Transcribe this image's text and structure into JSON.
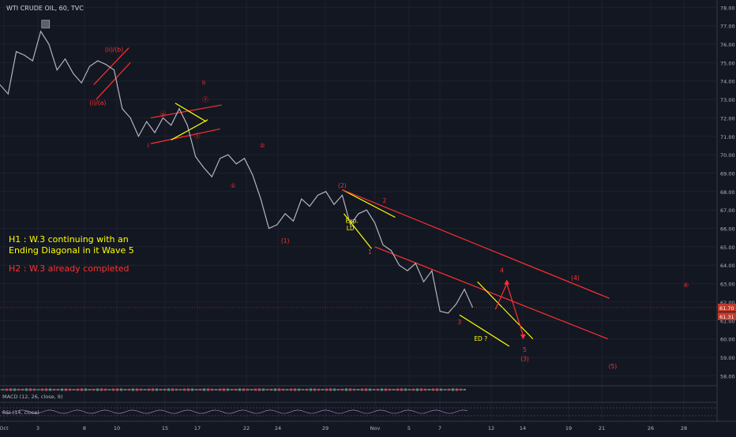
{
  "header": {
    "symbol": "WTI CRUDE OIL, 60, TVC"
  },
  "chart_data": {
    "type": "line",
    "title": "WTI CRUDE OIL, 60, TVC",
    "xlabel": "",
    "ylabel": "",
    "x_tick_labels": [
      "Oct",
      "3",
      "8",
      "10",
      "15",
      "17",
      "22",
      "24",
      "29",
      "Nov",
      "5",
      "7",
      "12",
      "14",
      "19",
      "21",
      "26",
      "28"
    ],
    "ylim": [
      57.5,
      78.4
    ],
    "y_ticks": [
      78.0,
      77.0,
      76.0,
      75.0,
      74.0,
      73.0,
      72.0,
      71.0,
      70.0,
      69.0,
      68.0,
      67.0,
      66.0,
      65.0,
      64.0,
      63.0,
      62.0,
      61.0,
      60.0,
      59.0,
      58.0
    ],
    "y_tick_labels": [
      "78.00",
      "77.00",
      "76.00",
      "75.00",
      "74.00",
      "73.00",
      "72.00",
      "71.00",
      "70.00",
      "69.00",
      "68.00",
      "67.00",
      "66.00",
      "65.00",
      "64.00",
      "63.00",
      "62.00",
      "61.00",
      "60.00",
      "59.00",
      "58.00"
    ],
    "x_domain": [
      0,
      88
    ],
    "series": [
      {
        "x": [
          0,
          1,
          2,
          3,
          4,
          5,
          6,
          7,
          8,
          9,
          10,
          11,
          12,
          13,
          14,
          15,
          16,
          17,
          18,
          19,
          20,
          21,
          22,
          23,
          24,
          25,
          26,
          27,
          28,
          29,
          30,
          31,
          32,
          33,
          34,
          35,
          36,
          37,
          38,
          39,
          40,
          41,
          42,
          43,
          44,
          45,
          46,
          47,
          48,
          49,
          50,
          51,
          52,
          53,
          54,
          55,
          56,
          57,
          58
        ],
        "y": [
          73.8,
          73.3,
          75.6,
          75.4,
          75.1,
          76.7,
          76.0,
          74.6,
          75.2,
          74.4,
          73.9,
          74.8,
          75.1,
          74.9,
          74.6,
          72.5,
          72.0,
          71.0,
          71.8,
          71.2,
          72.0,
          71.6,
          72.5,
          71.6,
          69.9,
          69.3,
          68.8,
          69.8,
          70.0,
          69.5,
          69.8,
          68.9,
          67.6,
          66.0,
          66.2,
          66.8,
          66.4,
          67.6,
          67.2,
          67.8,
          68.0,
          67.3,
          67.8,
          66.2,
          66.8,
          67.0,
          66.3,
          65.1,
          64.8,
          64.0,
          63.7,
          64.1,
          63.1,
          63.7,
          61.5,
          61.4,
          61.9,
          62.7,
          61.7
        ],
        "color": "#b2b5be"
      }
    ],
    "last_price_label": "61.70",
    "secondary_price_label": "61.31",
    "text_notes": [
      {
        "text": "H1 : W.3 continuing with an",
        "color": "#ffff00"
      },
      {
        "text": "Ending Diagonal in it Wave 5",
        "color": "#ffff00"
      },
      {
        "text": "H2 : W.3 already completed",
        "color": "#ff3030"
      }
    ],
    "wave_labels": [
      {
        "text": "(ii)/(b)",
        "x": 14,
        "y": 75.6,
        "color": "#ff3030"
      },
      {
        "text": "(i)/(a)",
        "x": 12,
        "y": 72.7,
        "color": "#ff3030"
      },
      {
        "text": "ii",
        "x": 25,
        "y": 73.8,
        "color": "#ff3030"
      },
      {
        "text": "i",
        "x": 18.2,
        "y": 70.4,
        "color": "#ff3030"
      },
      {
        "text": "ⓦ",
        "x": 20,
        "y": 72.1,
        "color": "#ff3030"
      },
      {
        "text": "ⓧ",
        "x": 24.2,
        "y": 70.9,
        "color": "#ff3030"
      },
      {
        "text": "ⓨ",
        "x": 25.2,
        "y": 72.9,
        "color": "#ff3030"
      },
      {
        "text": "①",
        "x": 28.6,
        "y": 68.2,
        "color": "#ff3030"
      },
      {
        "text": "②",
        "x": 32.2,
        "y": 70.4,
        "color": "#ff3030"
      },
      {
        "text": "(1)",
        "x": 35,
        "y": 65.2,
        "color": "#ff3030"
      },
      {
        "text": "(2)",
        "x": 42,
        "y": 68.2,
        "color": "#ff3030"
      },
      {
        "text": "2",
        "x": 47.2,
        "y": 67.4,
        "color": "#ff3030"
      },
      {
        "text": "Exp.",
        "x": 43.2,
        "y": 66.3,
        "color": "#ffff00"
      },
      {
        "text": "LD",
        "x": 43,
        "y": 65.9,
        "color": "#ffff00"
      },
      {
        "text": "1",
        "x": 45.4,
        "y": 64.6,
        "color": "#ff3030"
      },
      {
        "text": "4",
        "x": 61.6,
        "y": 63.6,
        "color": "#ff3030"
      },
      {
        "text": "(4)",
        "x": 70.6,
        "y": 63.2,
        "color": "#ff3030"
      },
      {
        "text": "④",
        "x": 84.2,
        "y": 62.8,
        "color": "#ff3030"
      },
      {
        "text": "3",
        "x": 56.4,
        "y": 60.8,
        "color": "#ff3030"
      },
      {
        "text": "ED ?",
        "x": 59,
        "y": 59.9,
        "color": "#ffff00"
      },
      {
        "text": "5",
        "x": 64.4,
        "y": 59.3,
        "color": "#ff3030"
      },
      {
        "text": "(3)",
        "x": 64.4,
        "y": 58.8,
        "color": "#ff3030"
      },
      {
        "text": "(5)",
        "x": 75.2,
        "y": 58.4,
        "color": "#ff3030"
      }
    ],
    "lower_panes": [
      {
        "label": "MACD (12, 26, close, 9)"
      },
      {
        "label": "RSI (14, close)"
      }
    ]
  }
}
